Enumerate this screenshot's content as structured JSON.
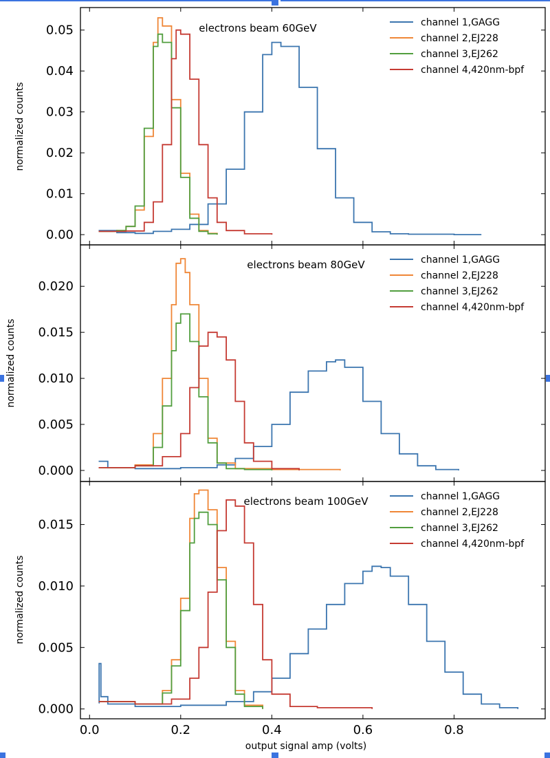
{
  "figure": {
    "xlabel": "output signal amp (volts)",
    "ylabel": "normalized counts",
    "xlim": [
      -0.02,
      1.0
    ],
    "xticks": [
      0.0,
      0.2,
      0.4,
      0.6,
      0.8
    ],
    "xtick_labels": [
      "0.0",
      "0.2",
      "0.4",
      "0.6",
      "0.8"
    ]
  },
  "colors": {
    "channel_1": "#3b75af",
    "channel_2": "#ef8636",
    "channel_3": "#519e3e",
    "channel_4": "#c53a32"
  },
  "chart_data": [
    {
      "type": "line",
      "title": "electrons beam 60GeV",
      "xlabel": "output signal amp (volts)",
      "ylabel": "normalized counts",
      "ylim": [
        -0.0025,
        0.0555
      ],
      "yticks": [
        0.0,
        0.01,
        0.02,
        0.03,
        0.04,
        0.05
      ],
      "ytick_labels": [
        "0.00",
        "0.01",
        "0.02",
        "0.03",
        "0.04",
        "0.05"
      ],
      "legend": "top-right",
      "series": [
        {
          "name": "channel 1,GAGG",
          "color": "#3b75af",
          "x": [
            0.02,
            0.06,
            0.1,
            0.14,
            0.18,
            0.22,
            0.26,
            0.3,
            0.34,
            0.38,
            0.4,
            0.42,
            0.46,
            0.5,
            0.54,
            0.58,
            0.62,
            0.66,
            0.7,
            0.8,
            0.86
          ],
          "y": [
            0.001,
            0.0005,
            0.0003,
            0.0008,
            0.0013,
            0.0025,
            0.0075,
            0.016,
            0.03,
            0.044,
            0.047,
            0.046,
            0.036,
            0.021,
            0.009,
            0.003,
            0.0007,
            0.0002,
            0.0001,
            0.0,
            0.0
          ]
        },
        {
          "name": "channel 2,EJ228",
          "color": "#ef8636",
          "x": [
            0.02,
            0.06,
            0.08,
            0.1,
            0.12,
            0.14,
            0.15,
            0.16,
            0.18,
            0.2,
            0.22,
            0.24,
            0.26,
            0.28
          ],
          "y": [
            0.0008,
            0.001,
            0.002,
            0.006,
            0.024,
            0.047,
            0.053,
            0.051,
            0.033,
            0.015,
            0.005,
            0.001,
            0.0003,
            0.0
          ]
        },
        {
          "name": "channel 3,EJ262",
          "color": "#519e3e",
          "x": [
            0.02,
            0.06,
            0.08,
            0.1,
            0.12,
            0.14,
            0.15,
            0.16,
            0.18,
            0.2,
            0.22,
            0.24,
            0.26,
            0.28
          ],
          "y": [
            0.0008,
            0.001,
            0.002,
            0.007,
            0.026,
            0.046,
            0.049,
            0.047,
            0.031,
            0.014,
            0.004,
            0.0008,
            0.0002,
            0.0
          ]
        },
        {
          "name": "channel 4,420nm-bpf",
          "color": "#c53a32",
          "x": [
            0.02,
            0.08,
            0.12,
            0.14,
            0.16,
            0.18,
            0.19,
            0.2,
            0.22,
            0.24,
            0.26,
            0.28,
            0.3,
            0.34,
            0.4
          ],
          "y": [
            0.0008,
            0.0009,
            0.003,
            0.008,
            0.022,
            0.043,
            0.05,
            0.049,
            0.038,
            0.022,
            0.009,
            0.003,
            0.001,
            0.0002,
            0.0
          ]
        }
      ]
    },
    {
      "type": "line",
      "title": "electrons beam 80GeV",
      "xlabel": "output signal amp (volts)",
      "ylabel": "normalized counts",
      "ylim": [
        -0.0012,
        0.0245
      ],
      "yticks": [
        0.0,
        0.005,
        0.01,
        0.015,
        0.02
      ],
      "ytick_labels": [
        "0.000",
        "0.005",
        "0.010",
        "0.015",
        "0.020"
      ],
      "legend": "top-right",
      "series": [
        {
          "name": "channel 1,GAGG",
          "color": "#3b75af",
          "x": [
            0.02,
            0.04,
            0.1,
            0.2,
            0.28,
            0.32,
            0.36,
            0.4,
            0.44,
            0.48,
            0.52,
            0.54,
            0.56,
            0.6,
            0.64,
            0.68,
            0.72,
            0.76,
            0.81
          ],
          "y": [
            0.001,
            0.0003,
            0.0002,
            0.0003,
            0.0006,
            0.0013,
            0.0026,
            0.005,
            0.0085,
            0.0108,
            0.0118,
            0.012,
            0.0112,
            0.0075,
            0.004,
            0.0018,
            0.0005,
            0.0001,
            0.0
          ]
        },
        {
          "name": "channel 2,EJ228",
          "color": "#ef8636",
          "x": [
            0.02,
            0.1,
            0.14,
            0.16,
            0.18,
            0.19,
            0.2,
            0.21,
            0.22,
            0.24,
            0.26,
            0.28,
            0.32,
            0.4,
            0.55
          ],
          "y": [
            0.0003,
            0.0006,
            0.004,
            0.01,
            0.018,
            0.0225,
            0.023,
            0.0215,
            0.018,
            0.01,
            0.0035,
            0.0008,
            0.0002,
            0.0001,
            0.0
          ]
        },
        {
          "name": "channel 3,EJ262",
          "color": "#519e3e",
          "x": [
            0.02,
            0.1,
            0.14,
            0.16,
            0.18,
            0.19,
            0.2,
            0.22,
            0.24,
            0.26,
            0.28,
            0.3,
            0.34,
            0.4
          ],
          "y": [
            0.0003,
            0.0005,
            0.0025,
            0.007,
            0.013,
            0.016,
            0.017,
            0.014,
            0.008,
            0.003,
            0.0008,
            0.0002,
            0.0001,
            0.0
          ]
        },
        {
          "name": "channel 4,420nm-bpf",
          "color": "#c53a32",
          "x": [
            0.02,
            0.1,
            0.16,
            0.2,
            0.22,
            0.24,
            0.26,
            0.28,
            0.3,
            0.32,
            0.34,
            0.36,
            0.4,
            0.46
          ],
          "y": [
            0.0003,
            0.0005,
            0.0015,
            0.004,
            0.009,
            0.0135,
            0.015,
            0.0145,
            0.012,
            0.0075,
            0.003,
            0.001,
            0.0002,
            0.0
          ]
        }
      ]
    },
    {
      "type": "line",
      "title": "electrons beam 100GeV",
      "xlabel": "output signal amp (volts)",
      "ylabel": "normalized counts",
      "ylim": [
        -0.0008,
        0.0185
      ],
      "yticks": [
        0.0,
        0.005,
        0.01,
        0.015
      ],
      "ytick_labels": [
        "0.000",
        "0.005",
        "0.010",
        "0.015"
      ],
      "legend": "top-right",
      "series": [
        {
          "name": "channel 1,GAGG",
          "color": "#3b75af",
          "x": [
            0.02,
            0.021,
            0.025,
            0.04,
            0.1,
            0.2,
            0.3,
            0.36,
            0.4,
            0.44,
            0.48,
            0.52,
            0.56,
            0.6,
            0.62,
            0.64,
            0.66,
            0.7,
            0.74,
            0.78,
            0.82,
            0.86,
            0.9,
            0.94
          ],
          "y": [
            0.0005,
            0.0037,
            0.001,
            0.0004,
            0.0002,
            0.0003,
            0.0006,
            0.0014,
            0.0025,
            0.0045,
            0.0065,
            0.0085,
            0.0102,
            0.0112,
            0.0116,
            0.0115,
            0.0108,
            0.0085,
            0.0055,
            0.003,
            0.0012,
            0.0004,
            0.0001,
            0.0
          ]
        },
        {
          "name": "channel 2,EJ228",
          "color": "#ef8636",
          "x": [
            0.02,
            0.1,
            0.16,
            0.18,
            0.2,
            0.22,
            0.23,
            0.24,
            0.26,
            0.28,
            0.3,
            0.32,
            0.34,
            0.38
          ],
          "y": [
            0.0006,
            0.0004,
            0.0015,
            0.004,
            0.009,
            0.0155,
            0.0175,
            0.0178,
            0.0162,
            0.0115,
            0.0055,
            0.0015,
            0.0003,
            0.0
          ]
        },
        {
          "name": "channel 3,EJ262",
          "color": "#519e3e",
          "x": [
            0.02,
            0.1,
            0.16,
            0.18,
            0.2,
            0.22,
            0.23,
            0.24,
            0.26,
            0.28,
            0.3,
            0.32,
            0.34,
            0.38
          ],
          "y": [
            0.0006,
            0.0004,
            0.0013,
            0.0035,
            0.008,
            0.0135,
            0.0155,
            0.016,
            0.015,
            0.0105,
            0.005,
            0.0012,
            0.0002,
            0.0
          ]
        },
        {
          "name": "channel 4,420nm-bpf",
          "color": "#c53a32",
          "x": [
            0.02,
            0.1,
            0.18,
            0.22,
            0.24,
            0.26,
            0.28,
            0.3,
            0.32,
            0.34,
            0.36,
            0.38,
            0.4,
            0.44,
            0.5,
            0.62
          ],
          "y": [
            0.0006,
            0.0004,
            0.0008,
            0.0025,
            0.005,
            0.0095,
            0.0145,
            0.017,
            0.0165,
            0.0135,
            0.0085,
            0.004,
            0.0012,
            0.0002,
            0.0001,
            0.0
          ]
        }
      ]
    }
  ]
}
